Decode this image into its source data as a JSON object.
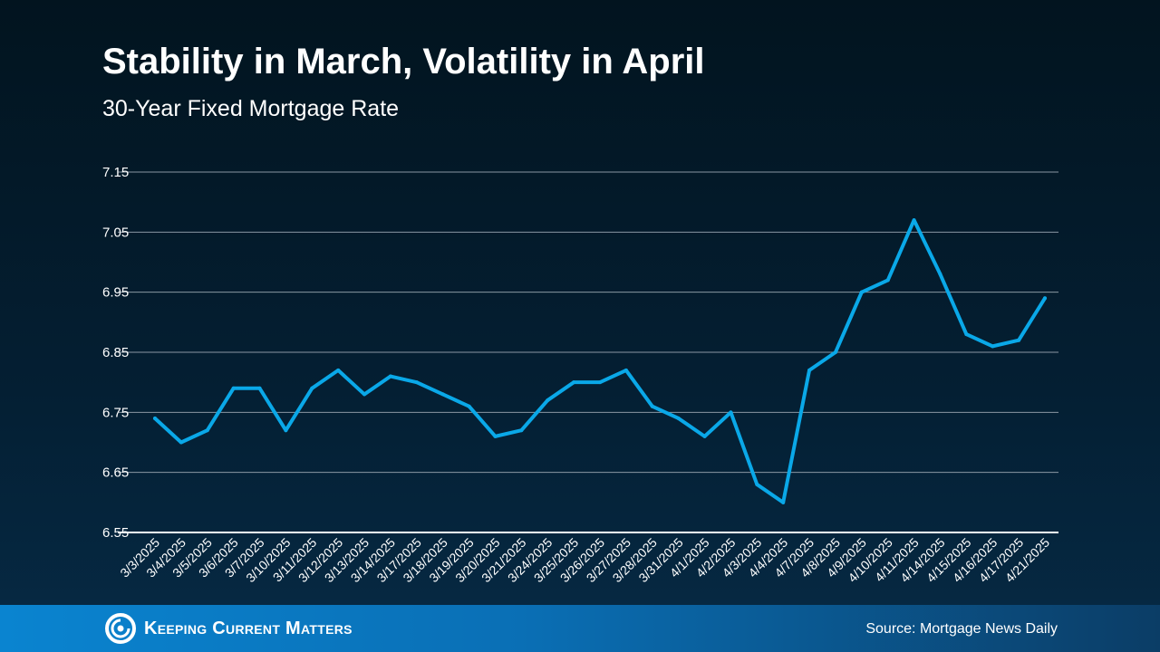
{
  "header": {
    "title": "Stability in March, Volatility in April",
    "subtitle": "30-Year Fixed Mortgage Rate"
  },
  "chart_data": {
    "type": "line",
    "title": "Stability in March, Volatility in April",
    "subtitle": "30-Year Fixed Mortgage Rate",
    "xlabel": "",
    "ylabel": "",
    "ylim": [
      6.55,
      7.15
    ],
    "yticks": [
      "6.55",
      "6.65",
      "6.75",
      "6.85",
      "6.95",
      "7.05",
      "7.15"
    ],
    "grid": true,
    "line_color": "#0aa8e8",
    "categories": [
      "3/3/2025",
      "3/4/2025",
      "3/5/2025",
      "3/6/2025",
      "3/7/2025",
      "3/10/2025",
      "3/11/2025",
      "3/12/2025",
      "3/13/2025",
      "3/14/2025",
      "3/17/2025",
      "3/18/2025",
      "3/19/2025",
      "3/20/2025",
      "3/21/2025",
      "3/24/2025",
      "3/25/2025",
      "3/26/2025",
      "3/27/2025",
      "3/28/2025",
      "3/31/2025",
      "4/1/2025",
      "4/2/2025",
      "4/3/2025",
      "4/4/2025",
      "4/7/2025",
      "4/8/2025",
      "4/9/2025",
      "4/10/2025",
      "4/11/2025",
      "4/14/2025",
      "4/15/2025",
      "4/16/2025",
      "4/17/2025",
      "4/21/2025"
    ],
    "series": [
      {
        "name": "30-Year Fixed Mortgage Rate",
        "values": [
          6.74,
          6.7,
          6.72,
          6.79,
          6.79,
          6.72,
          6.79,
          6.82,
          6.78,
          6.81,
          6.8,
          6.78,
          6.76,
          6.71,
          6.72,
          6.77,
          6.8,
          6.8,
          6.82,
          6.76,
          6.74,
          6.71,
          6.75,
          6.63,
          6.6,
          6.82,
          6.85,
          6.95,
          6.97,
          7.07,
          6.98,
          6.88,
          6.86,
          6.87,
          6.94
        ]
      }
    ]
  },
  "footer": {
    "logo_text": "Keeping Current Matters",
    "source": "Source: Mortgage News Daily"
  }
}
